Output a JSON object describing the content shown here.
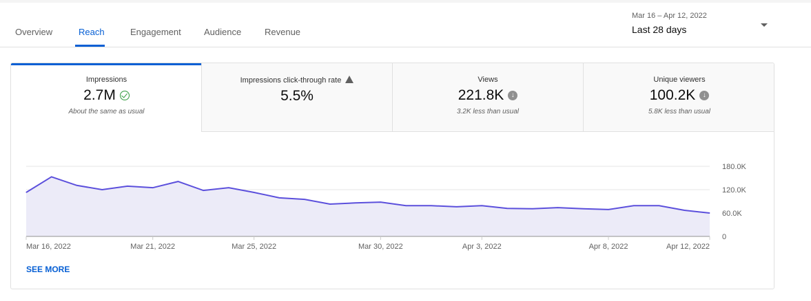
{
  "tabs": [
    {
      "label": "Overview"
    },
    {
      "label": "Reach",
      "active": true
    },
    {
      "label": "Engagement"
    },
    {
      "label": "Audience"
    },
    {
      "label": "Revenue"
    }
  ],
  "date_range": {
    "dates": "Mar 16 – Apr 12, 2022",
    "label": "Last 28 days"
  },
  "metrics": [
    {
      "label": "Impressions",
      "value": "2.7M",
      "icon": "check-circle-icon",
      "note": "About the same as usual"
    },
    {
      "label": "Impressions click-through rate",
      "value": "5.5%",
      "icon": "warning-icon",
      "note": ""
    },
    {
      "label": "Views",
      "value": "221.8K",
      "icon": "arrow-down-circle-icon",
      "note": "3.2K less than usual"
    },
    {
      "label": "Unique viewers",
      "value": "100.2K",
      "icon": "arrow-down-circle-icon",
      "note": "5.8K less than usual"
    }
  ],
  "see_more": "SEE MORE",
  "colors": {
    "accent": "#065fd4",
    "line": "#5b4fdc",
    "fill": "#ecebf8"
  },
  "chart_data": {
    "type": "area",
    "x": [
      "Mar 16, 2022",
      "Mar 17, 2022",
      "Mar 18, 2022",
      "Mar 19, 2022",
      "Mar 20, 2022",
      "Mar 21, 2022",
      "Mar 22, 2022",
      "Mar 23, 2022",
      "Mar 24, 2022",
      "Mar 25, 2022",
      "Mar 26, 2022",
      "Mar 27, 2022",
      "Mar 28, 2022",
      "Mar 29, 2022",
      "Mar 30, 2022",
      "Mar 31, 2022",
      "Apr 1, 2022",
      "Apr 2, 2022",
      "Apr 3, 2022",
      "Apr 4, 2022",
      "Apr 5, 2022",
      "Apr 6, 2022",
      "Apr 7, 2022",
      "Apr 8, 2022",
      "Apr 9, 2022",
      "Apr 10, 2022",
      "Apr 11, 2022",
      "Apr 12, 2022"
    ],
    "values": [
      113000,
      153000,
      131000,
      120000,
      129000,
      125000,
      141000,
      118000,
      125000,
      113000,
      99000,
      95000,
      83000,
      86000,
      88000,
      79000,
      79000,
      76000,
      79000,
      72000,
      71000,
      74000,
      71000,
      69000,
      79000,
      79000,
      67000,
      60000
    ],
    "x_ticks": [
      "Mar 16, 2022",
      "Mar 21, 2022",
      "Mar 25, 2022",
      "Mar 30, 2022",
      "Apr 3, 2022",
      "Apr 8, 2022",
      "Apr 12, 2022"
    ],
    "y_ticks": [
      "0",
      "60.0K",
      "120.0K",
      "180.0K"
    ],
    "ylim": [
      0,
      180000
    ],
    "grid": true,
    "y_axis_side": "right"
  }
}
